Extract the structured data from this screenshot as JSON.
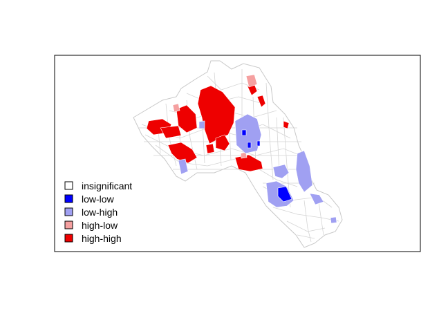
{
  "map": {
    "legend": {
      "items": [
        {
          "label": "insignificant",
          "color": "#ffffff"
        },
        {
          "label": "low-low",
          "color": "#0000ff"
        },
        {
          "label": "low-high",
          "color": "#a0a0f2"
        },
        {
          "label": "high-low",
          "color": "#f5a0a0"
        },
        {
          "label": "high-high",
          "color": "#ee0000"
        }
      ]
    },
    "boundary_color": "#c8c8c8"
  }
}
